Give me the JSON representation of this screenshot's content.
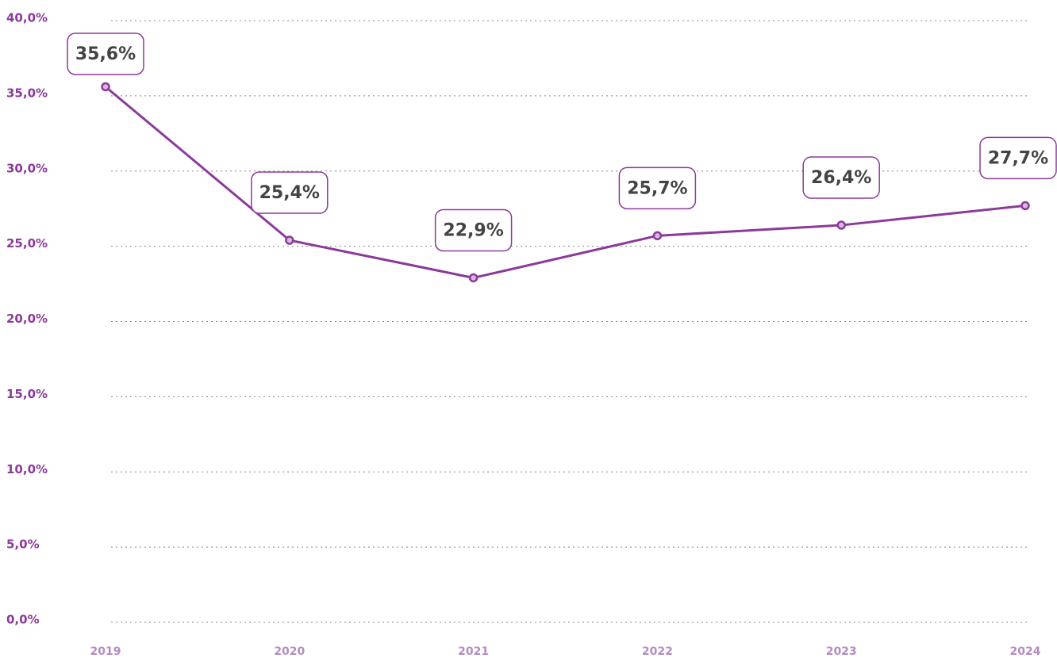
{
  "chart_data": {
    "type": "line",
    "categories": [
      "2019",
      "2020",
      "2021",
      "2022",
      "2023",
      "2024"
    ],
    "series": [
      {
        "name": null,
        "color": "#8b3a9a",
        "values": [
          35.6,
          25.4,
          22.9,
          25.7,
          26.4,
          27.7
        ],
        "value_labels": [
          "35,6%",
          "25,4%",
          "22,9%",
          "25,7%",
          "26,4%",
          "27,7%"
        ]
      }
    ],
    "ylim": [
      0,
      40
    ],
    "yticks": [
      {
        "value": 0,
        "label": "0,0%"
      },
      {
        "value": 5,
        "label": "5,0%"
      },
      {
        "value": 10,
        "label": "10,0%"
      },
      {
        "value": 15,
        "label": "15,0%"
      },
      {
        "value": 20,
        "label": "20,0%"
      },
      {
        "value": 25,
        "label": "25,0%"
      },
      {
        "value": 30,
        "label": "30,0%"
      },
      {
        "value": 35,
        "label": "35,0%"
      },
      {
        "value": 40,
        "label": "40,0%"
      }
    ],
    "grid": true
  }
}
